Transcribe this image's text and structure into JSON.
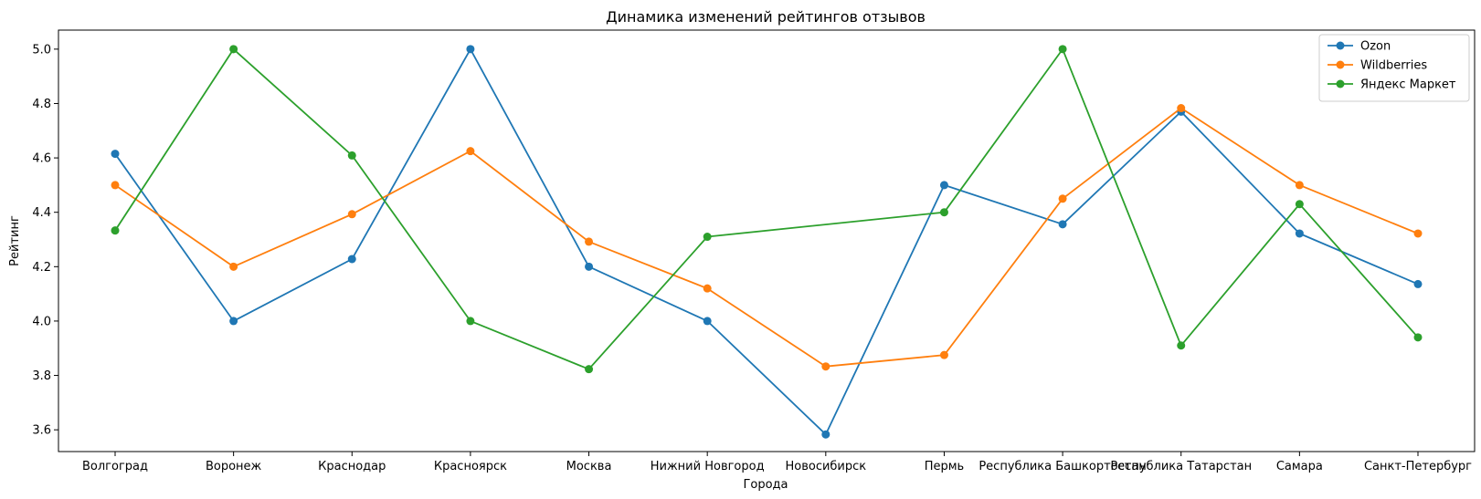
{
  "chart_data": {
    "type": "line",
    "title": "Динамика изменений рейтингов отзывов",
    "xlabel": "Города",
    "ylabel": "Рейтинг",
    "categories": [
      "Волгоград",
      "Воронеж",
      "Краснодар",
      "Красноярск",
      "Москва",
      "Нижний Новгород",
      "Новосибирск",
      "Пермь",
      "Республика Башкортостан",
      "Республика Татарстан",
      "Самара",
      "Санкт-Петербург"
    ],
    "ylim": [
      3.52,
      5.07
    ],
    "yticks": [
      "3.6",
      "3.8",
      "4.0",
      "4.2",
      "4.4",
      "4.6",
      "4.8",
      "5.0"
    ],
    "grid": false,
    "legend_position": "top-right",
    "series": [
      {
        "name": "Ozon",
        "color": "#1f77b4",
        "values": [
          4.615,
          4.0,
          4.228,
          5.0,
          4.2,
          4.0,
          3.583,
          4.5,
          4.356,
          4.77,
          4.322,
          4.136
        ]
      },
      {
        "name": "Wildberries",
        "color": "#ff7f0e",
        "values": [
          4.5,
          4.2,
          4.393,
          4.625,
          4.292,
          4.12,
          3.833,
          3.875,
          4.45,
          4.783,
          4.5,
          4.322
        ]
      },
      {
        "name": "Яндекс Маркет",
        "color": "#2ca02c",
        "values": [
          4.333,
          5.0,
          4.609,
          4.0,
          3.823,
          4.31,
          null,
          4.4,
          5.0,
          3.91,
          4.43,
          3.94
        ]
      }
    ]
  }
}
